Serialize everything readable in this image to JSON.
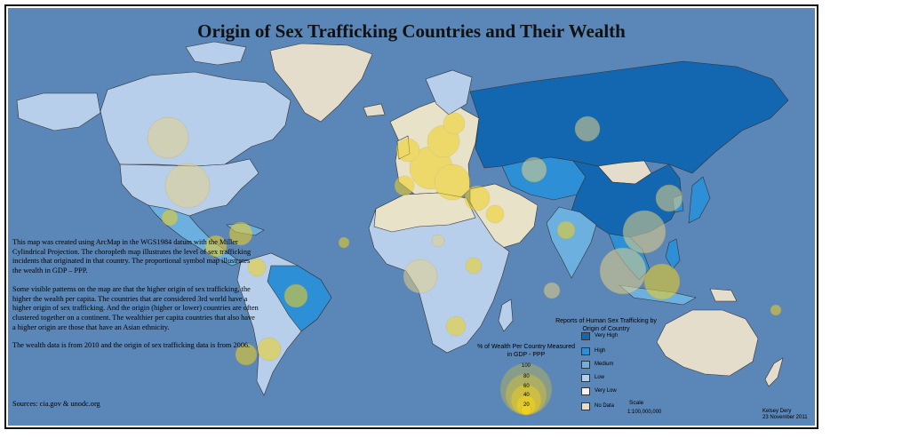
{
  "title": "Origin of Sex Trafficking Countries and Their Wealth",
  "description": [
    "This map was created using ArcMap in the WGS1984 datum with the Miller Cylindrical Projection. The choropleth map illustrates the level of sex trafficking incidents that originated in that country. The proportional symbol map illustrates the wealth in GDP – PPP.",
    "Some visible patterns on the map are that the higher origin of sex trafficking, the higher the wealth per capita. The countries that are considered 3rd world have a higher origin of sex trafficking. And the origin (higher or lower) countries are often clustered together on a continent. The wealthier per capita countries that also have a higher origin are those that have an Asian ethnicity.",
    "The wealth data is from 2010 and the origin of sex trafficking data is from 2006."
  ],
  "sources": "Sources: cia.gov & unodc.org",
  "symbol_legend": {
    "title": "% of Wealth Per Country Measured in GDP - PPP",
    "values": [
      "100",
      "80",
      "60",
      "40",
      "20"
    ],
    "fill": "#f1d21e"
  },
  "choropleth_legend": {
    "title": "Reports of Human Sex Trafficking by Origin of Country",
    "items": [
      {
        "label": "Very High",
        "color": "#1267b0"
      },
      {
        "label": "High",
        "color": "#2d90d6"
      },
      {
        "label": "Medium",
        "color": "#6cb0e0"
      },
      {
        "label": "Low",
        "color": "#b7cfea"
      },
      {
        "label": "Very Low",
        "color": "#f2f3f7"
      },
      {
        "label": "No Data",
        "color": "#e4ddcc"
      }
    ]
  },
  "scale": {
    "title": "Scale",
    "value": "1:100,000,000"
  },
  "author": {
    "name": "Kelsey Dery",
    "date": "23 November 2011"
  },
  "colors": {
    "ocean": "#5b86b8",
    "wealth_symbol": "#f1d21e"
  }
}
